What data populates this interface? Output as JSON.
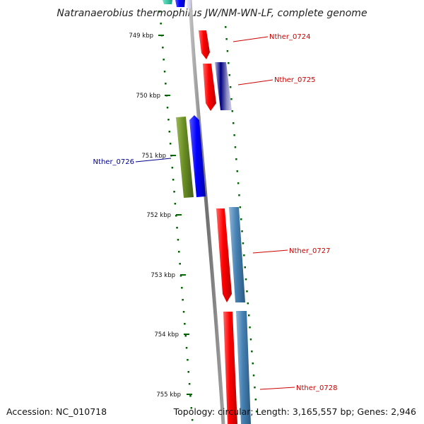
{
  "title": "Natranaerobius thermophilus JW/NM-WN-LF, complete genome",
  "footer": {
    "accession": "Accession: NC_010718",
    "summary": "Topology: circular; Length: 3,165,557 bp; Genes: 2,946"
  },
  "ruler": {
    "labels": [
      "749 kbp",
      "750 kbp",
      "751 kbp",
      "752 kbp",
      "753 kbp",
      "754 kbp",
      "755 kbp"
    ]
  },
  "colors": {
    "forward_gene": "#ff0000",
    "reverse_gene": "#0000ff",
    "steelblue_gene": "#4682b4",
    "navy_gene": "#000080",
    "olive_gene": "#6b8e23",
    "teal_gene": "#20c0a0",
    "backbone": "#808080",
    "tick": "#006400",
    "label_forward": "#cc0000",
    "label_reverse": "#00008b"
  },
  "gene_labels": [
    {
      "text": "Nther_0724",
      "strand": "forward"
    },
    {
      "text": "Nther_0725",
      "strand": "forward"
    },
    {
      "text": "Nther_0726",
      "strand": "reverse"
    },
    {
      "text": "Nther_0727",
      "strand": "forward"
    },
    {
      "text": "Nther_0728",
      "strand": "forward"
    }
  ]
}
